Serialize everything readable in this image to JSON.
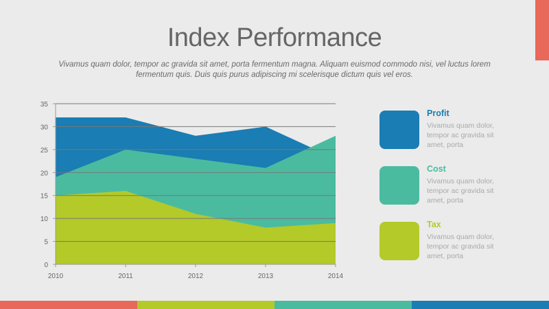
{
  "slide": {
    "title": "Index Performance",
    "subtitle": "Vivamus quam dolor, tempor ac gravida sit amet, porta fermentum magna. Aliquam euismod commodo nisi, vel luctus lorem fermentum quis. Duis quis purus adipiscing mi scelerisque dictum quis vel eros."
  },
  "colors": {
    "profit": "#1a7db3",
    "cost": "#4bbba0",
    "tax": "#b3ca29",
    "accent": "#e8685a",
    "footer": [
      "#e8685a",
      "#b3ca29",
      "#4bbba0",
      "#1a7db3"
    ]
  },
  "legend": [
    {
      "name": "Profit",
      "description": "Vivamus quam dolor, tempor ac gravida sit amet, porta",
      "color_key": "profit"
    },
    {
      "name": "Cost",
      "description": "Vivamus quam dolor, tempor ac gravida sit amet, porta",
      "color_key": "cost"
    },
    {
      "name": "Tax",
      "description": "Vivamus quam dolor, tempor ac gravida sit amet, porta",
      "color_key": "tax"
    }
  ],
  "chart_data": {
    "type": "area",
    "x": [
      "2010",
      "2011",
      "2012",
      "2013",
      "2014"
    ],
    "ylim": [
      0,
      35
    ],
    "yticks": [
      0,
      5,
      10,
      15,
      20,
      25,
      30,
      35
    ],
    "grid": true,
    "legend_position": "right",
    "series": [
      {
        "name": "Profit",
        "values": [
          32,
          32,
          28,
          30,
          23
        ]
      },
      {
        "name": "Cost",
        "values": [
          19,
          25,
          23,
          21,
          28
        ]
      },
      {
        "name": "Tax",
        "values": [
          15,
          16,
          11,
          8,
          9
        ]
      }
    ]
  }
}
